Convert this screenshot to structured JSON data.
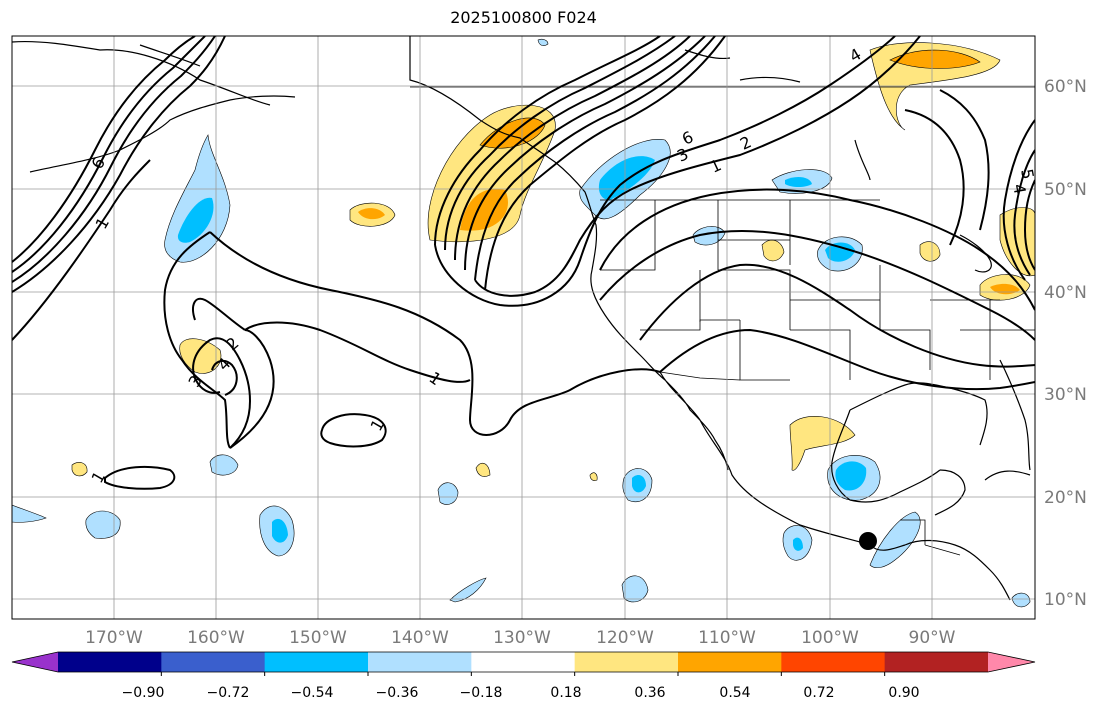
{
  "title": "2025100800 F024",
  "map": {
    "lon_labels": [
      "170°W",
      "160°W",
      "150°W",
      "140°W",
      "130°W",
      "120°W",
      "110°W",
      "100°W",
      "90°W"
    ],
    "lat_labels": [
      "60°N",
      "50°N",
      "40°N",
      "30°N",
      "20°N",
      "10°N"
    ],
    "contour_labels": [
      "4",
      "6",
      "1",
      "2",
      "3",
      "1",
      "2",
      "3",
      "4",
      "1",
      "1",
      "1",
      "6",
      "5",
      "4"
    ],
    "marker": "storm-center-dot"
  },
  "colorbar": {
    "ticks": [
      "−0.90",
      "−0.72",
      "−0.54",
      "−0.36",
      "−0.18",
      "0.18",
      "0.36",
      "0.54",
      "0.72",
      "0.90"
    ],
    "colors": [
      "#9932cc",
      "#00008b",
      "#3a5fcd",
      "#00bfff",
      "#b0e0ff",
      "#ffffff",
      "#ffe680",
      "#ffa500",
      "#ff4500",
      "#b22222",
      "#ff88aa"
    ]
  }
}
